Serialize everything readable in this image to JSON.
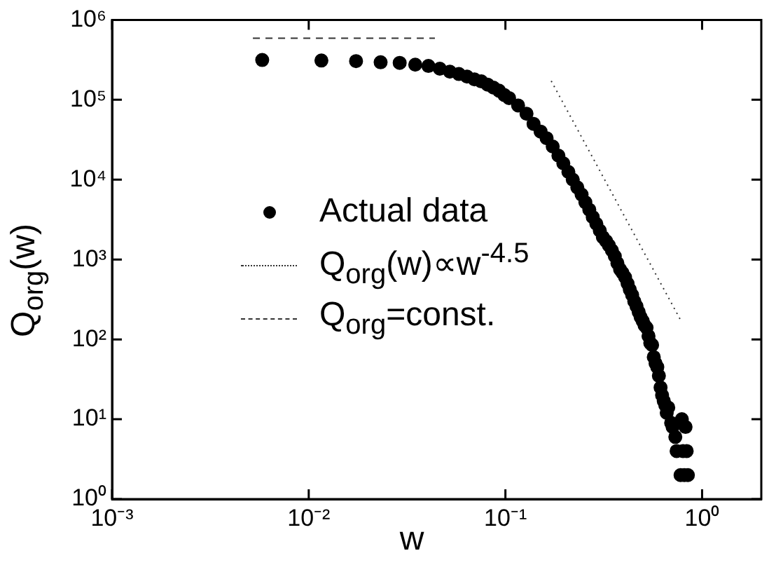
{
  "chart_data": {
    "type": "scatter",
    "xlabel": "w",
    "ylabel": "Q$_{org}$(w)",
    "log": "xy",
    "grid": false,
    "legend": "center",
    "xlim": [
      0.001,
      2
    ],
    "ylim": [
      1,
      1000000
    ],
    "xticks": [
      {
        "value": 0.001,
        "label": "10⁻³"
      },
      {
        "value": 0.01,
        "label": "10⁻²"
      },
      {
        "value": 0.1,
        "label": "10⁻¹"
      },
      {
        "value": 1,
        "label": "10⁰"
      }
    ],
    "yticks": [
      {
        "value": 1,
        "label": "10⁰"
      },
      {
        "value": 10,
        "label": "10¹"
      },
      {
        "value": 100,
        "label": "10²"
      },
      {
        "value": 1000,
        "label": "10³"
      },
      {
        "value": 10000,
        "label": "10⁴"
      },
      {
        "value": 100000,
        "label": "10⁵"
      },
      {
        "value": 1000000,
        "label": "10⁶"
      }
    ],
    "series": [
      {
        "name": "Actual data",
        "marker": "circle",
        "color": "#000000",
        "x": [
          0.0058,
          0.0116,
          0.0174,
          0.0232,
          0.029,
          0.0348,
          0.0406,
          0.0464,
          0.0522,
          0.058,
          0.0638,
          0.0696,
          0.0754,
          0.0812,
          0.087,
          0.0928,
          0.0986,
          0.1044,
          0.116,
          0.128,
          0.139,
          0.151,
          0.162,
          0.174,
          0.186,
          0.197,
          0.209,
          0.22,
          0.232,
          0.244,
          0.255,
          0.267,
          0.278,
          0.29,
          0.302,
          0.313,
          0.325,
          0.336,
          0.348,
          0.36,
          0.371,
          0.383,
          0.394,
          0.406,
          0.418,
          0.429,
          0.441,
          0.452,
          0.464,
          0.476,
          0.487,
          0.499,
          0.51,
          0.522,
          0.534,
          0.545,
          0.557,
          0.568,
          0.58,
          0.592,
          0.603,
          0.615,
          0.626,
          0.638,
          0.65,
          0.661,
          0.673,
          0.696,
          0.708,
          0.731,
          0.742,
          0.777,
          0.789,
          0.8,
          0.812,
          0.824,
          0.835,
          0.847
        ],
        "values": [
          315000,
          310000,
          305000,
          295000,
          290000,
          275000,
          265000,
          245000,
          225000,
          210000,
          195000,
          180000,
          170000,
          155000,
          142000,
          130000,
          115000,
          105000,
          85000,
          67000,
          50000,
          40000,
          33000,
          26000,
          20000,
          16000,
          12500,
          10000,
          8000,
          6500,
          5200,
          4200,
          3400,
          2800,
          2300,
          1900,
          1700,
          1500,
          1300,
          1100,
          900,
          750,
          680,
          600,
          500,
          420,
          360,
          300,
          260,
          220,
          190,
          170,
          150,
          140,
          110,
          90,
          85,
          60,
          50,
          45,
          35,
          25,
          20,
          17,
          15,
          12,
          14,
          9,
          8,
          6,
          4,
          2,
          10,
          4,
          2,
          8,
          4,
          2
        ]
      },
      {
        "name": "Q$_{org}$(w)∝w$^{-4.5}$",
        "type": "line",
        "line_style": "dotted",
        "color": "#333333",
        "x": [
          0.171,
          0.776
        ],
        "values": [
          172000,
          176
        ]
      },
      {
        "name": "Q$_{org}$=const.",
        "type": "line",
        "line_style": "dashed",
        "color": "#333333",
        "x": [
          0.0052,
          0.0438
        ],
        "values": [
          590000,
          590000
        ]
      }
    ]
  }
}
